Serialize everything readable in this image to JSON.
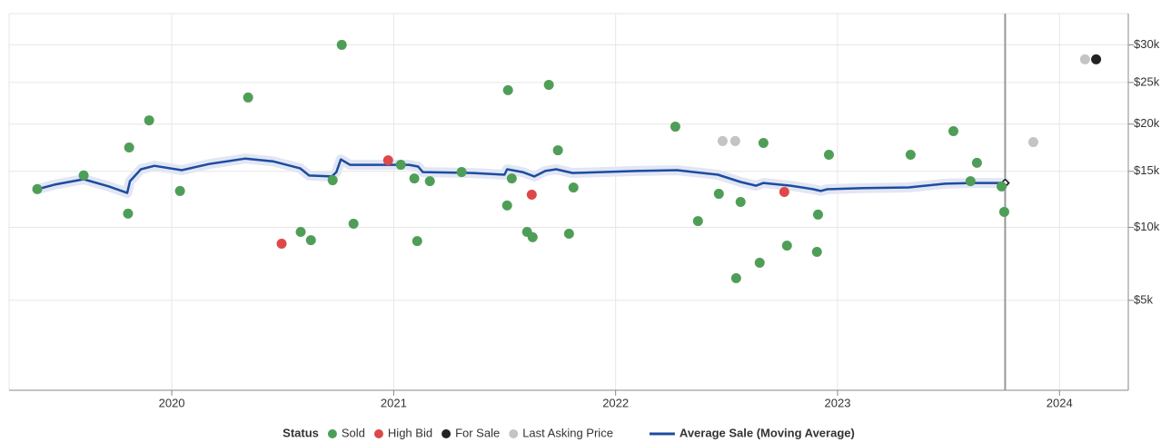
{
  "chart_data": {
    "type": "scatter",
    "scale": "sqrt",
    "xlim": [
      2019.267,
      2024.31
    ],
    "xticks": [
      2020,
      2021,
      2022,
      2023,
      2024
    ],
    "ylim": [
      1200,
      34500
    ],
    "yticks": [
      {
        "value": 5000,
        "label": "$5k"
      },
      {
        "value": 10000,
        "label": "$10k"
      },
      {
        "value": 15000,
        "label": "$15k"
      },
      {
        "value": 20000,
        "label": "$20k"
      },
      {
        "value": 25000,
        "label": "$25k"
      },
      {
        "value": 30000,
        "label": "$30k"
      }
    ],
    "grid": true,
    "current_x": 2023.755,
    "legend_title": "Status",
    "legend": "bottom",
    "series": [
      {
        "name": "Sold",
        "type": "scatter",
        "color": "#4f9e58",
        "x": [
          2019.394,
          2019.603,
          2019.808,
          2019.803,
          2019.898,
          2020.037,
          2020.344,
          2020.581,
          2020.627,
          2020.725,
          2020.766,
          2020.819,
          2021.032,
          2021.093,
          2021.106,
          2021.163,
          2021.306,
          2021.511,
          2021.515,
          2021.532,
          2021.601,
          2021.626,
          2021.699,
          2021.74,
          2021.79,
          2021.81,
          2022.269,
          2022.371,
          2022.465,
          2022.543,
          2022.563,
          2022.649,
          2022.666,
          2022.772,
          2022.907,
          2022.912,
          2022.961,
          2023.329,
          2023.522,
          2023.599,
          2023.628,
          2023.739,
          2023.751
        ],
        "values": [
          13300,
          14600,
          17430,
          11130,
          20430,
          13130,
          23130,
          9640,
          9000,
          14140,
          30000,
          10290,
          15650,
          14310,
          8930,
          14050,
          14930,
          11830,
          24030,
          14310,
          9640,
          9220,
          24700,
          17140,
          9500,
          13450,
          19710,
          10510,
          12870,
          6340,
          12140,
          7360,
          17920,
          8590,
          8130,
          11050,
          16670,
          16670,
          19210,
          14050,
          15850,
          13550,
          11280
        ]
      },
      {
        "name": "High Bid",
        "type": "scatter",
        "color": "#de4848",
        "x": [
          2020.495,
          2020.975,
          2021.622,
          2022.76
        ],
        "values": [
          8730,
          16100,
          12790,
          13040
        ]
      },
      {
        "name": "For Sale",
        "type": "scatter",
        "color": "#222222",
        "x": [
          2024.165
        ],
        "values": [
          28020
        ]
      },
      {
        "name": "Last Asking Price",
        "type": "scatter",
        "color": "#c4c4c4",
        "x": [
          2022.482,
          2022.539,
          2023.882,
          2024.115
        ],
        "values": [
          18120,
          18120,
          18010,
          28020
        ]
      },
      {
        "name": "Average Sale (Moving Average)",
        "type": "line",
        "color": "#1c4c9f",
        "x": [
          2019.394,
          2019.472,
          2019.603,
          2019.717,
          2019.799,
          2019.812,
          2019.861,
          2019.922,
          2020.045,
          2020.168,
          2020.332,
          2020.455,
          2020.578,
          2020.619,
          2020.721,
          2020.742,
          2020.762,
          2020.803,
          2021.069,
          2021.11,
          2021.131,
          2021.356,
          2021.499,
          2021.511,
          2021.581,
          2021.634,
          2021.683,
          2021.732,
          2021.806,
          2022.093,
          2022.277,
          2022.461,
          2022.563,
          2022.633,
          2022.666,
          2022.789,
          2022.891,
          2022.924,
          2022.953,
          2023.116,
          2023.321,
          2023.485,
          2023.608,
          2023.755
        ],
        "values": [
          13290,
          13720,
          14230,
          13550,
          12950,
          14050,
          15200,
          15550,
          15110,
          15730,
          16280,
          16000,
          15300,
          14590,
          14500,
          14930,
          16200,
          15650,
          15650,
          15470,
          14930,
          14840,
          14670,
          15200,
          14930,
          14500,
          15030,
          15200,
          14840,
          15030,
          15110,
          14670,
          13970,
          13620,
          13880,
          13620,
          13290,
          13130,
          13290,
          13390,
          13460,
          13810,
          13880,
          13880
        ]
      }
    ]
  }
}
